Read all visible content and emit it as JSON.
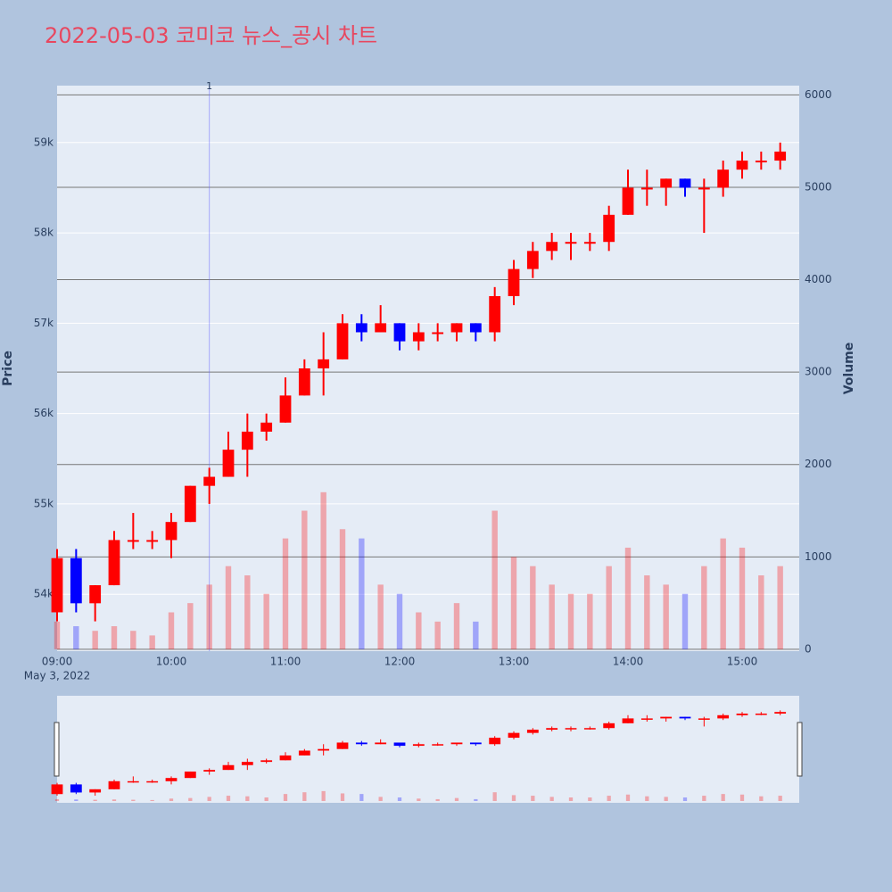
{
  "chart_data": {
    "type": "candlestick",
    "title": "2022-05-03 코미코 뉴스_공시 차트",
    "x_date_label": "May 3, 2022",
    "ylabel": "Price",
    "y2label": "Volume",
    "x": [
      "09:00",
      "09:10",
      "09:20",
      "09:30",
      "09:40",
      "09:50",
      "10:00",
      "10:10",
      "10:20",
      "10:30",
      "10:40",
      "10:50",
      "11:00",
      "11:10",
      "11:20",
      "11:30",
      "11:40",
      "11:50",
      "12:00",
      "12:10",
      "12:20",
      "12:30",
      "12:40",
      "12:50",
      "13:00",
      "13:10",
      "13:20",
      "13:30",
      "13:40",
      "13:50",
      "14:00",
      "14:10",
      "14:20",
      "14:30",
      "14:40",
      "14:50",
      "15:00",
      "15:10",
      "15:20"
    ],
    "open": [
      53800,
      54400,
      53900,
      54100,
      54600,
      54600,
      54600,
      54800,
      55200,
      55300,
      55600,
      55800,
      55900,
      56200,
      56500,
      56600,
      57000,
      56900,
      57000,
      56800,
      56900,
      56900,
      57000,
      56900,
      57300,
      57600,
      57800,
      57900,
      57900,
      57900,
      58200,
      58500,
      58500,
      58600,
      58500,
      58500,
      58700,
      58800,
      58800
    ],
    "high": [
      54500,
      54500,
      54100,
      54700,
      54900,
      54700,
      54900,
      55200,
      55400,
      55800,
      56000,
      56000,
      56400,
      56600,
      56900,
      57100,
      57100,
      57200,
      57000,
      57000,
      57000,
      57000,
      57000,
      57400,
      57700,
      57900,
      58000,
      58000,
      58000,
      58300,
      58700,
      58700,
      58600,
      58600,
      58600,
      58800,
      58900,
      58900,
      59000
    ],
    "low": [
      53700,
      53800,
      53700,
      54100,
      54500,
      54500,
      54400,
      54800,
      55000,
      55300,
      55300,
      55700,
      55900,
      56200,
      56200,
      56600,
      56800,
      56900,
      56700,
      56700,
      56800,
      56800,
      56800,
      56800,
      57200,
      57500,
      57700,
      57700,
      57800,
      57800,
      58200,
      58300,
      58300,
      58400,
      58000,
      58400,
      58600,
      58700,
      58700
    ],
    "close": [
      54400,
      53900,
      54100,
      54600,
      54600,
      54600,
      54800,
      55200,
      55300,
      55600,
      55800,
      55900,
      56200,
      56500,
      56600,
      57000,
      56900,
      57000,
      56800,
      56900,
      56900,
      57000,
      56900,
      57300,
      57600,
      57800,
      57900,
      57900,
      57900,
      58200,
      58500,
      58500,
      58600,
      58500,
      58500,
      58700,
      58800,
      58800,
      58900
    ],
    "volume": [
      300,
      250,
      200,
      250,
      200,
      150,
      400,
      500,
      700,
      900,
      800,
      600,
      1200,
      1500,
      1700,
      1300,
      1200,
      700,
      600,
      400,
      300,
      500,
      300,
      1500,
      1000,
      900,
      700,
      600,
      600,
      900,
      1100,
      800,
      700,
      600,
      900,
      1200,
      1100,
      800,
      900
    ],
    "up_color": "#ff0000",
    "down_color": "#0000ff",
    "xlim": [
      "09:00",
      "15:30"
    ],
    "xticks": [
      "09:00",
      "10:00",
      "11:00",
      "12:00",
      "13:00",
      "14:00",
      "15:00"
    ],
    "ylim": [
      53370,
      59630
    ],
    "yticks": [
      {
        "value": 54000,
        "label": "54k"
      },
      {
        "value": 55000,
        "label": "55k"
      },
      {
        "value": 56000,
        "label": "56k"
      },
      {
        "value": 57000,
        "label": "57k"
      },
      {
        "value": 58000,
        "label": "58k"
      },
      {
        "value": 59000,
        "label": "59k"
      }
    ],
    "y2lim": [
      -20,
      6100
    ],
    "y2ticks": [
      0,
      1000,
      2000,
      3000,
      4000,
      5000,
      6000
    ],
    "annotation": {
      "x": "10:20",
      "text": "1"
    },
    "grid": true
  }
}
